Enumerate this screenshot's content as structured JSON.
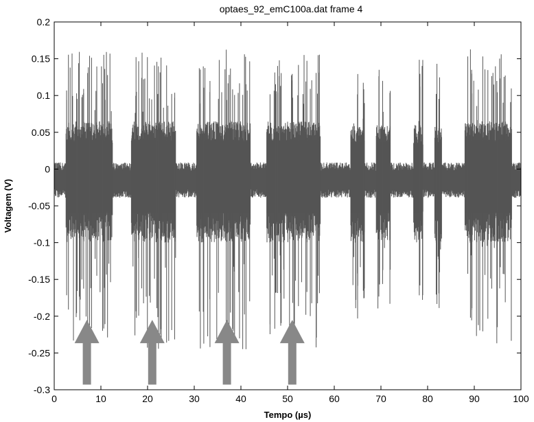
{
  "chart_data": {
    "type": "line",
    "title": "optaes_92_emC100a.dat  frame 4",
    "xlabel": "Tempo (µs)",
    "ylabel": "Voltagem (V)",
    "xlim": [
      0,
      100
    ],
    "ylim": [
      -0.3,
      0.2
    ],
    "xticks": [
      0,
      10,
      20,
      30,
      40,
      50,
      60,
      70,
      80,
      90,
      100
    ],
    "xtick_labels": [
      "0",
      "10",
      "20",
      "30",
      "40",
      "50",
      "60",
      "70",
      "80",
      "90",
      "100"
    ],
    "yticks": [
      0.2,
      0.15,
      0.1,
      0.05,
      0,
      -0.05,
      -0.1,
      -0.15,
      -0.2,
      -0.25,
      -0.3
    ],
    "ytick_labels": [
      "0.2",
      "0.15",
      "0.1",
      "0.05",
      "0",
      "-0.05",
      "-0.1",
      "-0.15",
      "-0.2",
      "-0.25",
      "-0.3"
    ],
    "grid": false,
    "series_color": "#555555",
    "baseline": {
      "center": -0.015,
      "amplitude": 0.012,
      "spike_amplitude": 0.02
    },
    "bursts": [
      {
        "start": 2.5,
        "end": 12.5,
        "high": 0.065,
        "low": -0.1,
        "peak_high": 0.16,
        "peak_low": -0.24
      },
      {
        "start": 16.5,
        "end": 26.0,
        "high": 0.065,
        "low": -0.1,
        "peak_high": 0.16,
        "peak_low": -0.245
      },
      {
        "start": 30.5,
        "end": 42.0,
        "high": 0.065,
        "low": -0.1,
        "peak_high": 0.165,
        "peak_low": -0.245
      },
      {
        "start": 45.5,
        "end": 57.0,
        "high": 0.065,
        "low": -0.1,
        "peak_high": 0.16,
        "peak_low": -0.245
      },
      {
        "start": 63.5,
        "end": 66.5,
        "high": 0.06,
        "low": -0.1,
        "peak_high": 0.15,
        "peak_low": -0.21
      },
      {
        "start": 69.0,
        "end": 72.0,
        "high": 0.06,
        "low": -0.1,
        "peak_high": 0.15,
        "peak_low": -0.19
      },
      {
        "start": 77.0,
        "end": 79.0,
        "high": 0.06,
        "low": -0.1,
        "peak_high": 0.15,
        "peak_low": -0.19
      },
      {
        "start": 81.5,
        "end": 83.0,
        "high": 0.06,
        "low": -0.1,
        "peak_high": 0.15,
        "peak_low": -0.19
      },
      {
        "start": 88.0,
        "end": 98.0,
        "high": 0.065,
        "low": -0.1,
        "peak_high": 0.165,
        "peak_low": -0.24
      }
    ],
    "annotations": [
      {
        "type": "arrow",
        "x": 7.0,
        "y_tail": -0.293,
        "y_head": -0.205,
        "color": "#888888"
      },
      {
        "type": "arrow",
        "x": 21.0,
        "y_tail": -0.293,
        "y_head": -0.205,
        "color": "#888888"
      },
      {
        "type": "arrow",
        "x": 37.0,
        "y_tail": -0.293,
        "y_head": -0.205,
        "color": "#888888"
      },
      {
        "type": "arrow",
        "x": 51.0,
        "y_tail": -0.293,
        "y_head": -0.205,
        "color": "#888888"
      }
    ]
  }
}
